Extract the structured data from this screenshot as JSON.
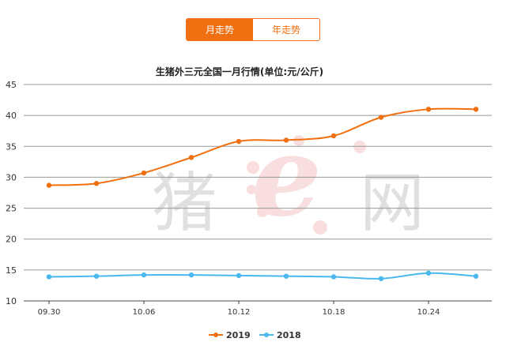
{
  "tabs": [
    {
      "label": "月走势",
      "active": true
    },
    {
      "label": "年走势",
      "active": false
    }
  ],
  "colors": {
    "series_2019": "#f07010",
    "series_2018": "#49b8ec",
    "tab_accent": "#f06f10",
    "watermark": "#f5d0d0"
  },
  "watermark": {
    "left": "猪",
    "right": "网",
    "center_letter": "e"
  },
  "chart_data": {
    "type": "line",
    "title": "生猪外三元全国一月行情(单位:元/公斤)",
    "xlabel": "",
    "ylabel": "",
    "x": [
      "09.30",
      "10.03",
      "10.06",
      "10.09",
      "10.12",
      "10.15",
      "10.18",
      "10.21",
      "10.24",
      "10.27"
    ],
    "x_tick_labels": [
      "09.30",
      "10.06",
      "10.12",
      "10.18",
      "10.24"
    ],
    "ylim": [
      10,
      45
    ],
    "y_ticks": [
      10,
      15,
      20,
      25,
      30,
      35,
      40,
      45
    ],
    "grid": true,
    "legend_position": "bottom-center",
    "series": [
      {
        "name": "2019",
        "values": [
          28.7,
          29.0,
          30.7,
          33.2,
          35.8,
          36.0,
          36.7,
          39.7,
          41.0,
          41.0
        ]
      },
      {
        "name": "2018",
        "values": [
          13.9,
          14.0,
          14.2,
          14.2,
          14.1,
          14.0,
          13.9,
          13.6,
          14.5,
          14.0
        ]
      }
    ]
  }
}
